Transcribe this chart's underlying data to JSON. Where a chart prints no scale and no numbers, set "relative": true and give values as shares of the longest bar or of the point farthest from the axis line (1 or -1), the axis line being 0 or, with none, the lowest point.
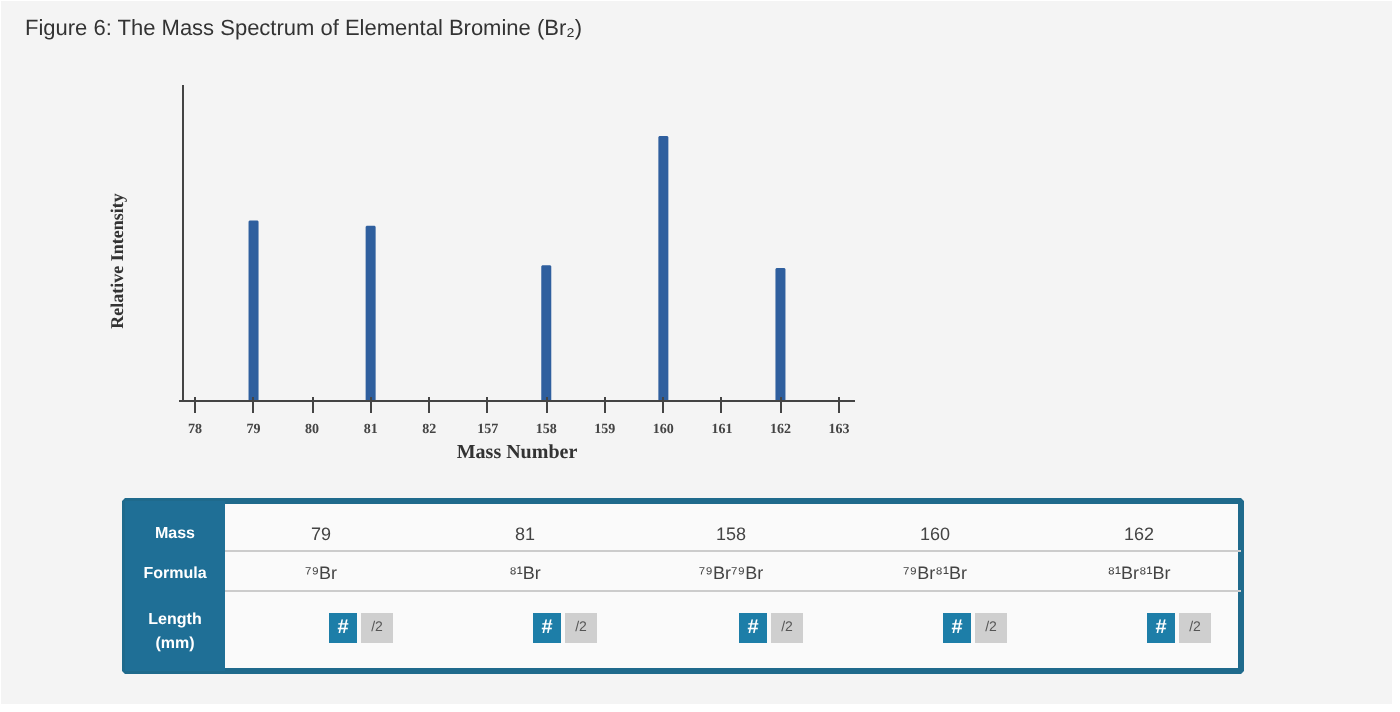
{
  "chart_data": {
    "type": "bar",
    "title": "Figure 6: The Mass Spectrum of Elemental Bromine (Br₂)",
    "xlabel": "Mass Number",
    "ylabel": "Relative Intensity",
    "relative": true,
    "color": "#2f5f9e",
    "categories": [
      "78",
      "79",
      "80",
      "81",
      "82",
      "157",
      "158",
      "159",
      "160",
      "161",
      "162",
      "163"
    ],
    "values": [
      null,
      0.68,
      null,
      0.66,
      null,
      null,
      0.51,
      null,
      1,
      null,
      0.5,
      null
    ],
    "annotations": [
      "Mass",
      "79",
      "81",
      "158",
      "160",
      "162",
      "Formula",
      "⁷⁹Br",
      "⁸¹Br",
      "⁷⁹Br⁷⁹Br",
      "⁷⁹Br⁸¹Br",
      "⁸¹Br⁸¹Br",
      "Length (mm)",
      "#",
      "/2",
      "#",
      "/2",
      "#",
      "/2",
      "#",
      "/2",
      "#",
      "/2"
    ],
    "grid": false
  }
}
